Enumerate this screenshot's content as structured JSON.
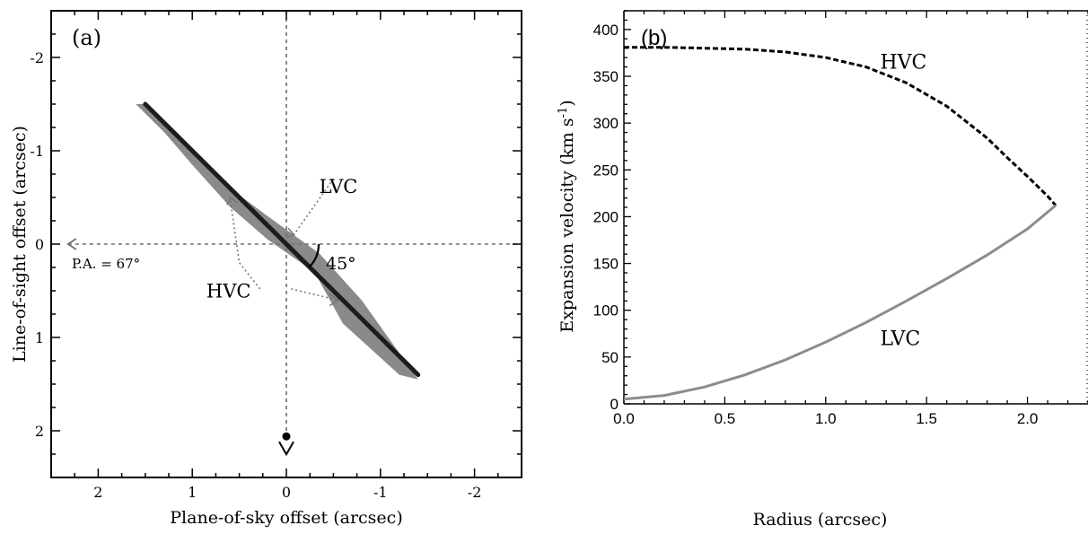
{
  "chart_data": [
    {
      "type": "diagram",
      "panel_label": "(a)",
      "xlabel": "Plane-of-sky offset (arcsec)",
      "ylabel": "Line-of-sight offset (arcsec)",
      "xlim": [
        2.5,
        -2.5
      ],
      "ylim": [
        2.5,
        -2.5
      ],
      "xticks": [
        2,
        1,
        0,
        -1,
        -2
      ],
      "xtick_labels": [
        "2",
        "1",
        "0",
        "-1",
        "-2"
      ],
      "yticks": [
        -2,
        -1,
        0,
        1,
        2
      ],
      "ytick_labels": [
        "-2",
        "-1",
        "0",
        "1",
        "2"
      ],
      "jet_axis": [
        [
          1.5,
          -1.5
        ],
        [
          -1.4,
          1.4
        ]
      ],
      "shaded_region": [
        [
          1.5,
          -1.5
        ],
        [
          1.0,
          -1.0
        ],
        [
          0.6,
          -0.6
        ],
        [
          0.2,
          -0.3
        ],
        [
          -0.35,
          0.1
        ],
        [
          -0.8,
          0.6
        ],
        [
          -1.4,
          1.45
        ],
        [
          -1.2,
          1.4
        ],
        [
          -0.6,
          0.85
        ],
        [
          -0.3,
          0.3
        ],
        [
          0.2,
          -0.05
        ],
        [
          0.6,
          -0.4
        ],
        [
          1.0,
          -0.85
        ],
        [
          1.3,
          -1.2
        ],
        [
          1.6,
          -1.5
        ]
      ],
      "angle_label": "45°",
      "pa_label": "P.A. = 67°",
      "annotations": [
        "LVC",
        "HVC"
      ],
      "colors": {
        "region": "#8a8a8a",
        "jet": "#1c1c1c",
        "guides": "#6e6e6e"
      }
    },
    {
      "type": "line",
      "panel_label": "(b)",
      "xlabel": "Radius (arcsec)",
      "ylabel": "Expansion velocity (km s",
      "ylabel_sup": "-1",
      "ylabel_end": ")",
      "xlim": [
        0,
        2.3
      ],
      "ylim": [
        0,
        420
      ],
      "xticks": [
        0.0,
        0.5,
        1.0,
        1.5,
        2.0
      ],
      "xtick_labels": [
        "0.0",
        "0.5",
        "1.0",
        "1.5",
        "2.0"
      ],
      "yticks": [
        0,
        50,
        100,
        150,
        200,
        250,
        300,
        350,
        400
      ],
      "ytick_labels": [
        "0",
        "50",
        "100",
        "150",
        "200",
        "250",
        "300",
        "350",
        "400"
      ],
      "series": [
        {
          "name": "HVC",
          "style": "dashed",
          "color": "#000000",
          "x": [
            0.0,
            0.2,
            0.4,
            0.6,
            0.8,
            1.0,
            1.2,
            1.4,
            1.6,
            1.8,
            1.9,
            2.0,
            2.1,
            2.14
          ],
          "y": [
            381,
            381,
            380,
            379,
            376,
            370,
            360,
            343,
            318,
            284,
            263,
            243,
            222,
            212
          ]
        },
        {
          "name": "LVC",
          "style": "solid",
          "color": "#8c8c8c",
          "x": [
            0.0,
            0.2,
            0.4,
            0.6,
            0.8,
            1.0,
            1.2,
            1.4,
            1.6,
            1.8,
            2.0,
            2.14
          ],
          "y": [
            5,
            9,
            18,
            31,
            47,
            66,
            87,
            110,
            134,
            159,
            187,
            212
          ]
        }
      ]
    }
  ]
}
